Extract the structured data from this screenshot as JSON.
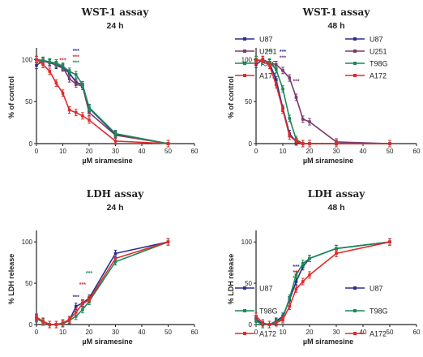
{
  "chart_data": [
    {
      "type": "line",
      "title": "WST-1 assay",
      "subtitle": "24 h",
      "xlabel": "µM siramesine",
      "ylabel": "% of control",
      "xlim": [
        0,
        60
      ],
      "ylim": [
        0,
        110
      ],
      "xticks": [
        "0",
        "10",
        "20",
        "30",
        "40",
        "50",
        "60"
      ],
      "yticks": [
        "0",
        "50",
        "100"
      ],
      "grid": false,
      "legend": "right",
      "series": [
        {
          "name": "U87",
          "color": "#2c2f8f",
          "x": [
            0,
            2.5,
            5,
            7.5,
            10,
            12.5,
            15,
            17.5,
            20,
            30,
            50
          ],
          "y": [
            93,
            99,
            97,
            93,
            90,
            84,
            73,
            70,
            42,
            11,
            0
          ]
        },
        {
          "name": "U251",
          "color": "#7b3a6d",
          "x": [
            0,
            2.5,
            5,
            7.5,
            10,
            12.5,
            15,
            17.5,
            20,
            30,
            50
          ],
          "y": [
            100,
            98,
            96,
            94,
            91,
            77,
            71,
            68,
            37,
            10,
            0
          ]
        },
        {
          "name": "T98G",
          "color": "#1a8a55",
          "x": [
            0,
            2.5,
            5,
            7.5,
            10,
            12.5,
            15,
            17.5,
            20,
            30,
            50
          ],
          "y": [
            100,
            99,
            97,
            96,
            92,
            86,
            82,
            70,
            43,
            12,
            0
          ]
        },
        {
          "name": "A172",
          "color": "#e02b2b",
          "x": [
            0,
            2.5,
            5,
            7.5,
            10,
            12.5,
            15,
            17.5,
            20,
            30,
            50
          ],
          "y": [
            100,
            94,
            86,
            72,
            60,
            40,
            37,
            33,
            28,
            3,
            0
          ]
        }
      ],
      "annotations": [
        {
          "text": "***",
          "x": 10,
          "y": 97,
          "color": "#e02b2b"
        },
        {
          "text": "***",
          "x": 15,
          "y": 108,
          "color": "#2c2f8f"
        },
        {
          "text": "***",
          "x": 15,
          "y": 101,
          "color": "#e02b2b"
        },
        {
          "text": "***",
          "x": 15,
          "y": 94,
          "color": "#1a8a55"
        }
      ]
    },
    {
      "type": "line",
      "title": "WST-1 assay",
      "subtitle": "48 h",
      "xlabel": "µM siramesine",
      "ylabel": "% of control",
      "xlim": [
        0,
        60
      ],
      "ylim": [
        0,
        110
      ],
      "xticks": [
        "0",
        "10",
        "20",
        "30",
        "40",
        "50",
        "60"
      ],
      "yticks": [
        "0",
        "50",
        "100"
      ],
      "grid": false,
      "legend": "right",
      "series": [
        {
          "name": "U87",
          "color": "#2c2f8f",
          "x": [
            0,
            2.5,
            5,
            7.5,
            10,
            12.5,
            15,
            17.5,
            20,
            30,
            50
          ],
          "y": [
            94,
            100,
            96,
            76,
            42,
            12,
            2,
            0,
            0,
            0,
            0
          ]
        },
        {
          "name": "U251",
          "color": "#7b3a6d",
          "x": [
            0,
            2.5,
            5,
            7.5,
            10,
            12.5,
            15,
            17.5,
            20,
            30,
            50
          ],
          "y": [
            100,
            98,
            96,
            94,
            87,
            78,
            55,
            29,
            26,
            2,
            0
          ]
        },
        {
          "name": "T98G",
          "color": "#1a8a55",
          "x": [
            0,
            2.5,
            5,
            7.5,
            10,
            12.5,
            15,
            17.5,
            20,
            30,
            50
          ],
          "y": [
            100,
            98,
            97,
            88,
            65,
            30,
            5,
            0,
            0,
            0,
            0
          ]
        },
        {
          "name": "A172",
          "color": "#e02b2b",
          "x": [
            0,
            2.5,
            5,
            7.5,
            10,
            12.5,
            15,
            17.5,
            20,
            30,
            50
          ],
          "y": [
            98,
            100,
            93,
            70,
            40,
            9,
            3,
            0,
            0,
            0,
            0
          ]
        }
      ],
      "annotations": [
        {
          "text": "***",
          "x": 5,
          "y": 107,
          "color": "#1a8a55"
        },
        {
          "text": "***",
          "x": 10,
          "y": 107,
          "color": "#2c2f8f"
        },
        {
          "text": "***",
          "x": 10,
          "y": 100,
          "color": "#7b3a6d"
        },
        {
          "text": "***",
          "x": 15,
          "y": 72,
          "color": "#7b3a6d"
        }
      ]
    },
    {
      "type": "line",
      "title": "LDH assay",
      "subtitle": "24 h",
      "xlabel": "µM siramesine",
      "ylabel": "% LDH release",
      "xlim": [
        0,
        60
      ],
      "ylim": [
        0,
        110
      ],
      "xticks": [
        "0",
        "10",
        "20",
        "30",
        "40",
        "50",
        "60"
      ],
      "yticks": [
        "0",
        "50",
        "100"
      ],
      "grid": false,
      "legend": "right",
      "series": [
        {
          "name": "U87",
          "color": "#2c2f8f",
          "x": [
            0,
            2.5,
            5,
            7.5,
            10,
            12.5,
            15,
            17.5,
            20,
            30,
            50
          ],
          "y": [
            8,
            3,
            0,
            0,
            1,
            5,
            22,
            26,
            32,
            86,
            100
          ]
        },
        {
          "name": "T98G",
          "color": "#1a8a55",
          "x": [
            0,
            2.5,
            5,
            7.5,
            10,
            12.5,
            15,
            17.5,
            20,
            30,
            50
          ],
          "y": [
            7,
            3,
            0,
            0,
            1,
            5,
            10,
            18,
            28,
            76,
            100
          ]
        },
        {
          "name": "A172",
          "color": "#e02b2b",
          "x": [
            0,
            2.5,
            5,
            7.5,
            10,
            12.5,
            15,
            17.5,
            20,
            30,
            50
          ],
          "y": [
            9,
            4,
            0,
            0,
            2,
            6,
            15,
            25,
            30,
            80,
            100
          ]
        }
      ],
      "annotations": [
        {
          "text": "***",
          "x": 15,
          "y": 31,
          "color": "#2c2f8f"
        },
        {
          "text": "***",
          "x": 17.5,
          "y": 46,
          "color": "#e02b2b"
        },
        {
          "text": "***",
          "x": 20,
          "y": 60,
          "color": "#1a8a55"
        }
      ]
    },
    {
      "type": "line",
      "title": "LDH assay",
      "subtitle": "48 h",
      "xlabel": "µM siramesine",
      "ylabel": "% LDH release",
      "xlim": [
        0,
        60
      ],
      "ylim": [
        0,
        110
      ],
      "xticks": [
        "0",
        "10",
        "20",
        "30",
        "40",
        "50",
        "60"
      ],
      "yticks": [
        "0",
        "50",
        "100"
      ],
      "grid": false,
      "legend": "right",
      "series": [
        {
          "name": "U87",
          "color": "#2c2f8f",
          "x": [
            0,
            2.5,
            5,
            7.5,
            10,
            12.5,
            15,
            17.5,
            20,
            30,
            50
          ],
          "y": [
            7,
            0,
            0,
            4,
            10,
            30,
            52,
            70,
            80,
            92,
            100
          ]
        },
        {
          "name": "T98G",
          "color": "#1a8a55",
          "x": [
            0,
            2.5,
            5,
            7.5,
            10,
            12.5,
            15,
            17.5,
            20,
            30,
            50
          ],
          "y": [
            4,
            0,
            0,
            3,
            8,
            32,
            60,
            74,
            80,
            92,
            100
          ]
        },
        {
          "name": "A172",
          "color": "#e02b2b",
          "x": [
            0,
            2.5,
            5,
            7.5,
            10,
            12.5,
            15,
            17.5,
            20,
            30,
            50
          ],
          "y": [
            10,
            2,
            0,
            2,
            6,
            22,
            43,
            52,
            60,
            86,
            100
          ]
        }
      ],
      "annotations": [
        {
          "text": "***",
          "x": 15,
          "y": 68,
          "color": "#2c2f8f"
        },
        {
          "text": "***",
          "x": 15,
          "y": 61,
          "color": "#e02b2b"
        },
        {
          "text": "***",
          "x": 15,
          "y": 54,
          "color": "#1a8a55"
        }
      ]
    }
  ]
}
